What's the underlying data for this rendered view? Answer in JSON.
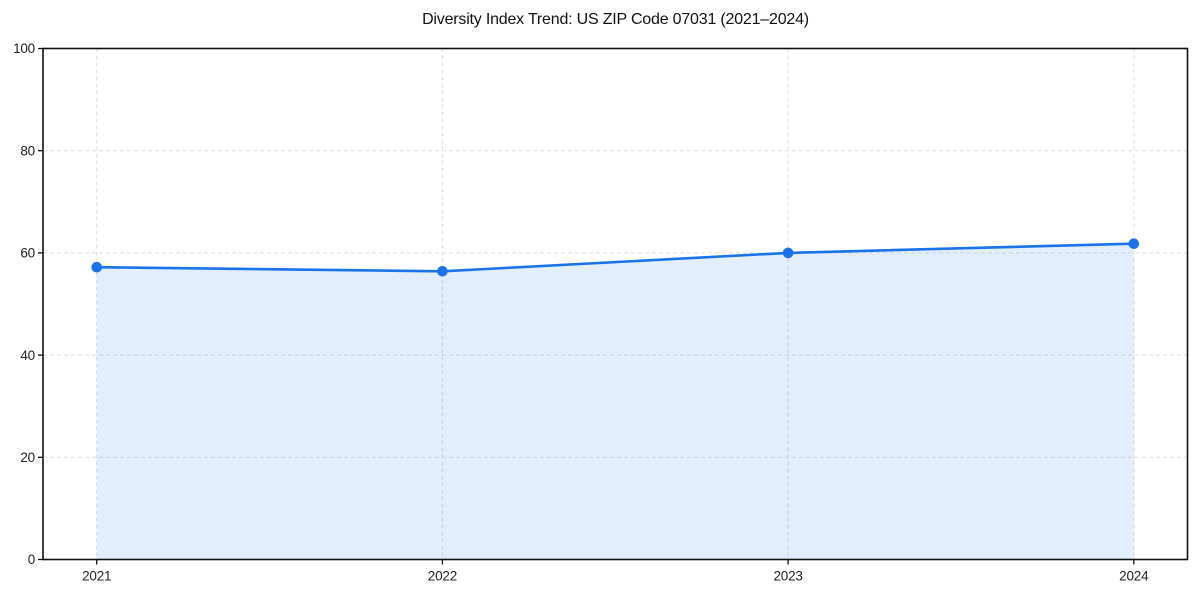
{
  "chart_data": {
    "type": "line",
    "title": "Diversity Index Trend: US ZIP Code 07031 (2021–2024)",
    "categories": [
      "2021",
      "2022",
      "2023",
      "2024"
    ],
    "values": [
      57.2,
      56.4,
      60.0,
      61.8
    ],
    "series_count": 1,
    "xlabel": "",
    "ylabel": "",
    "ylim": [
      0,
      100
    ],
    "yticks": [
      0,
      20,
      40,
      60,
      80,
      100
    ],
    "grid": true,
    "grid_style": "dashed",
    "legend_position": "none",
    "marker": "circle",
    "area_fill": true,
    "area_fill_span": "first-to-last-point",
    "colors": {
      "line": "#1a73e8",
      "marker": "#1a73e8",
      "area_fill": "rgba(26,115,232,0.12)",
      "grid": "#dedede",
      "axis": "#111111",
      "tick_label": "#222222",
      "title": "#111111",
      "background": "#ffffff"
    }
  }
}
